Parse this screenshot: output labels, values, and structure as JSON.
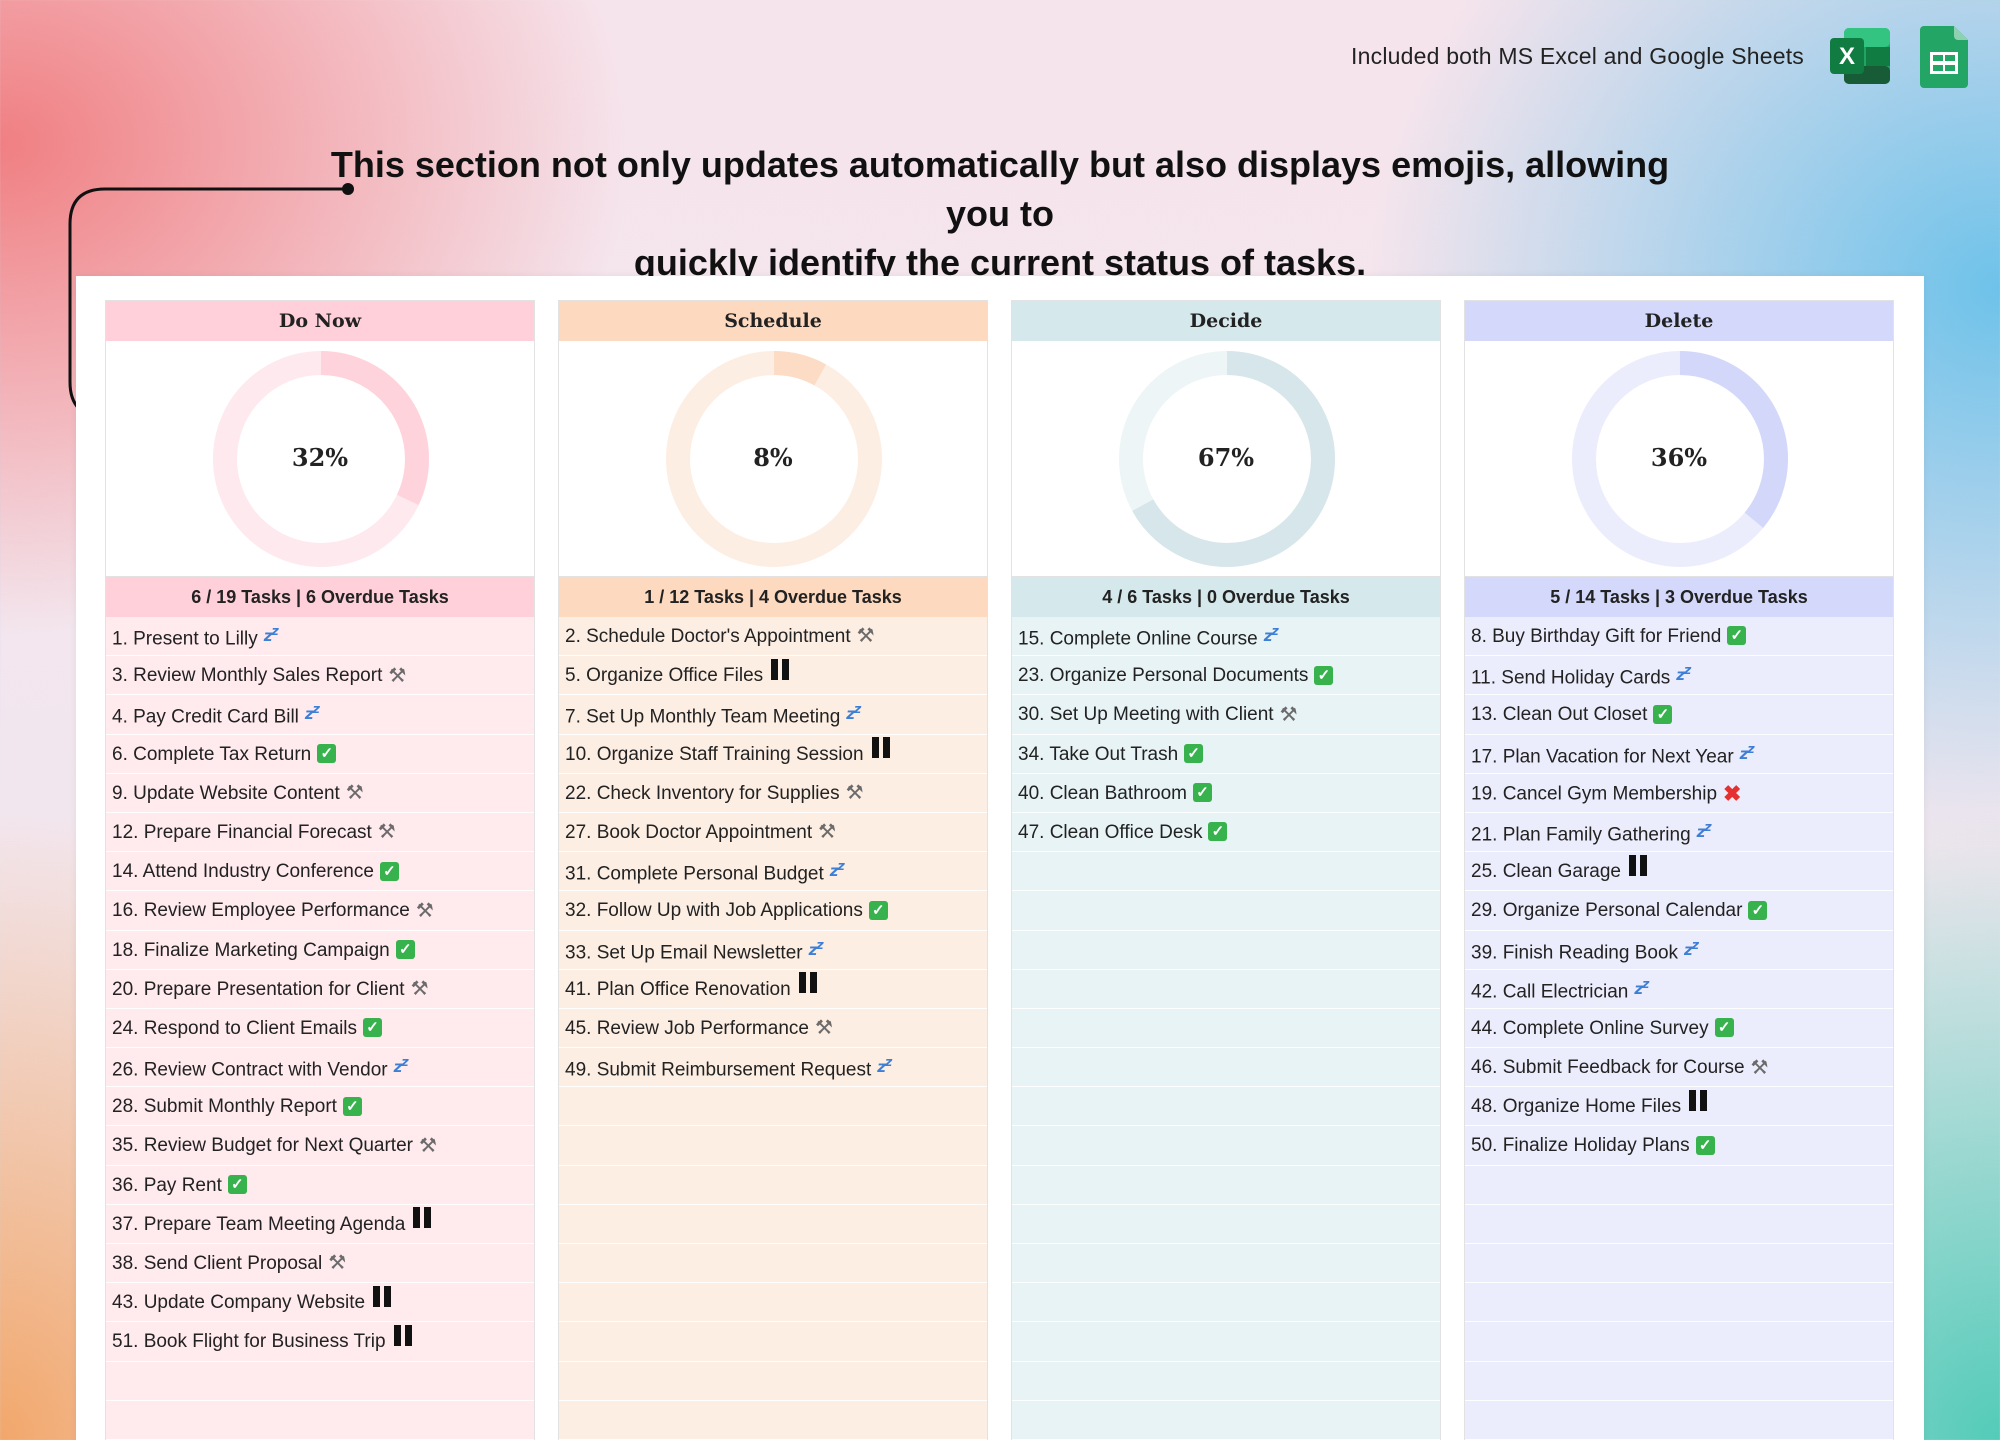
{
  "header": {
    "included_text": "Included both MS Excel and Google Sheets",
    "excel_letter": "X",
    "headline_line1": "This section not only updates automatically but also displays emojis, allowing you to",
    "headline_line2": "quickly identify the current status of tasks."
  },
  "status_icons": {
    "done": "green-check-icon",
    "paused": "pause-icon",
    "in_progress": "tools-icon",
    "not_started": "sleep-zzz-icon",
    "cancelled": "red-cross-icon"
  },
  "columns": [
    {
      "title": "Do Now",
      "percent_label": "32%",
      "progress": 0.32,
      "colors": {
        "head": "#ffd0da",
        "ring": "#ffd3dc",
        "ring_bg": "#fde9ee",
        "row": "#ffeaee",
        "summary": "#ffd0da"
      },
      "summary": "6 / 19 Tasks | 6 Overdue Tasks",
      "tasks": [
        {
          "label": "1. Present to Lilly",
          "status": "not_started"
        },
        {
          "label": "3. Review Monthly Sales Report",
          "status": "in_progress"
        },
        {
          "label": "4. Pay Credit Card Bill",
          "status": "not_started"
        },
        {
          "label": "6. Complete Tax Return",
          "status": "done"
        },
        {
          "label": "9. Update Website Content",
          "status": "in_progress"
        },
        {
          "label": "12. Prepare Financial Forecast",
          "status": "in_progress"
        },
        {
          "label": "14. Attend Industry Conference",
          "status": "done"
        },
        {
          "label": "16. Review Employee Performance",
          "status": "in_progress"
        },
        {
          "label": "18. Finalize Marketing Campaign",
          "status": "done"
        },
        {
          "label": "20. Prepare Presentation for Client",
          "status": "in_progress"
        },
        {
          "label": "24. Respond to Client Emails",
          "status": "done"
        },
        {
          "label": "26. Review Contract with Vendor",
          "status": "not_started"
        },
        {
          "label": "28. Submit Monthly Report",
          "status": "done"
        },
        {
          "label": "35. Review Budget for Next Quarter",
          "status": "in_progress"
        },
        {
          "label": "36. Pay Rent",
          "status": "done"
        },
        {
          "label": "37. Prepare Team Meeting Agenda",
          "status": "paused"
        },
        {
          "label": "38. Send Client Proposal",
          "status": "in_progress"
        },
        {
          "label": "43. Update Company Website",
          "status": "paused"
        },
        {
          "label": "51. Book Flight for Business Trip",
          "status": "paused"
        }
      ]
    },
    {
      "title": "Schedule",
      "percent_label": "8%",
      "progress": 0.08,
      "colors": {
        "head": "#fdd9bf",
        "ring": "#fcdcc5",
        "ring_bg": "#fdeee3",
        "row": "#fdeee3",
        "summary": "#fdd9bf"
      },
      "summary": "1 / 12 Tasks | 4 Overdue Tasks",
      "tasks": [
        {
          "label": "2. Schedule Doctor's Appointment",
          "status": "in_progress"
        },
        {
          "label": "5. Organize Office Files",
          "status": "paused"
        },
        {
          "label": "7. Set Up Monthly Team Meeting",
          "status": "not_started"
        },
        {
          "label": "10. Organize Staff Training Session",
          "status": "paused"
        },
        {
          "label": "22. Check Inventory for Supplies",
          "status": "in_progress"
        },
        {
          "label": "27. Book Doctor Appointment",
          "status": "in_progress"
        },
        {
          "label": "31. Complete Personal Budget",
          "status": "not_started"
        },
        {
          "label": "32. Follow Up with Job Applications",
          "status": "done"
        },
        {
          "label": "33. Set Up Email Newsletter",
          "status": "not_started"
        },
        {
          "label": "41. Plan Office Renovation",
          "status": "paused"
        },
        {
          "label": "45. Review Job Performance",
          "status": "in_progress"
        },
        {
          "label": "49. Submit Reimbursement Request",
          "status": "not_started"
        }
      ]
    },
    {
      "title": "Decide",
      "percent_label": "67%",
      "progress": 0.67,
      "colors": {
        "head": "#d5e8ec",
        "ring": "#d6e6ea",
        "ring_bg": "#edf5f7",
        "row": "#e8f3f6",
        "summary": "#d5e8ec"
      },
      "summary": "4 / 6 Tasks | 0 Overdue Tasks",
      "tasks": [
        {
          "label": "15. Complete Online Course",
          "status": "not_started"
        },
        {
          "label": "23. Organize Personal Documents",
          "status": "done"
        },
        {
          "label": "30. Set Up Meeting with Client",
          "status": "in_progress"
        },
        {
          "label": "34. Take Out Trash",
          "status": "done"
        },
        {
          "label": "40. Clean Bathroom",
          "status": "done"
        },
        {
          "label": "47. Clean Office Desk",
          "status": "done"
        }
      ]
    },
    {
      "title": "Delete",
      "percent_label": "36%",
      "progress": 0.36,
      "colors": {
        "head": "#d4d8fb",
        "ring": "#d3d8fa",
        "ring_bg": "#ecedfc",
        "row": "#ecedfc",
        "summary": "#d4d8fb"
      },
      "summary": "5 / 14 Tasks | 3 Overdue Tasks",
      "tasks": [
        {
          "label": "8. Buy Birthday Gift for Friend",
          "status": "done"
        },
        {
          "label": "11. Send Holiday Cards",
          "status": "not_started"
        },
        {
          "label": "13. Clean Out Closet",
          "status": "done"
        },
        {
          "label": "17. Plan Vacation for Next Year",
          "status": "not_started"
        },
        {
          "label": "19. Cancel Gym Membership",
          "status": "cancelled"
        },
        {
          "label": "21. Plan Family Gathering",
          "status": "not_started"
        },
        {
          "label": "25. Clean Garage",
          "status": "paused"
        },
        {
          "label": "29. Organize Personal Calendar",
          "status": "done"
        },
        {
          "label": "39. Finish Reading Book",
          "status": "not_started"
        },
        {
          "label": "42. Call Electrician",
          "status": "not_started"
        },
        {
          "label": "44. Complete Online Survey",
          "status": "done"
        },
        {
          "label": "46. Submit Feedback for Course",
          "status": "in_progress"
        },
        {
          "label": "48. Organize Home Files",
          "status": "paused"
        },
        {
          "label": "50. Finalize Holiday Plans",
          "status": "done"
        }
      ]
    }
  ]
}
